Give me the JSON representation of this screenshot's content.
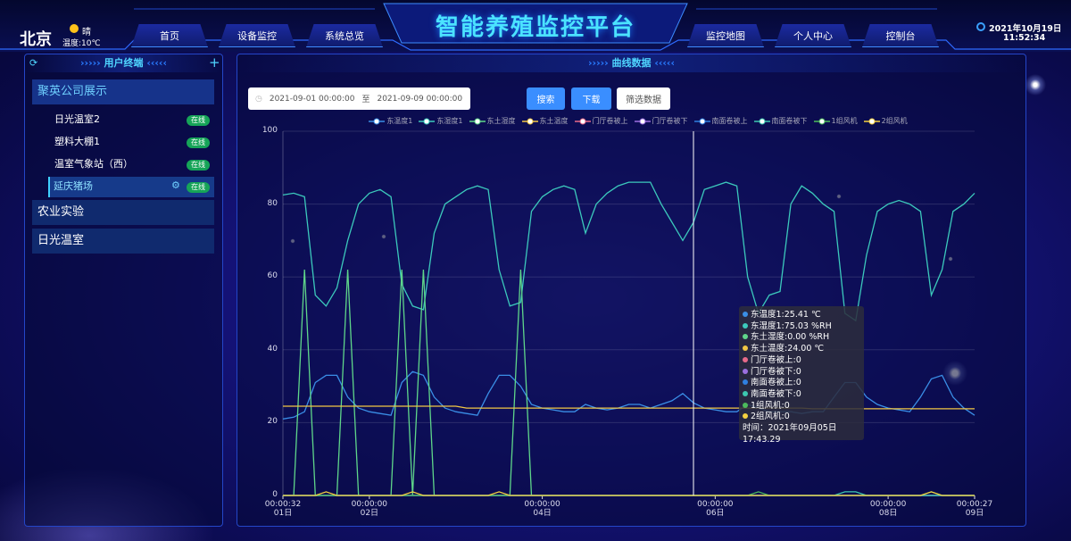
{
  "header": {
    "city": "北京",
    "weather": "晴",
    "temperature": "温度:10℃",
    "nav_left": [
      "首页",
      "设备监控",
      "系统总览"
    ],
    "title": "智能养殖监控平台",
    "nav_right": [
      "监控地图",
      "个人中心",
      "控制台"
    ],
    "date": "2021年10月19日",
    "time": "11:52:34"
  },
  "sidebar": {
    "title": "用户终端",
    "groups": [
      {
        "name": "聚英公司展示",
        "devices": [
          {
            "name": "日光温室2",
            "status": "在线"
          },
          {
            "name": "塑料大棚1",
            "status": "在线"
          },
          {
            "name": "温室气象站（西）",
            "status": "在线"
          },
          {
            "name": "延庆猪场",
            "status": "在线"
          }
        ]
      },
      {
        "name": "农业实验"
      },
      {
        "name": "日光温室"
      }
    ]
  },
  "panel": {
    "title": "曲线数据",
    "start": "2021-09-01 00:00:00",
    "separator": "至",
    "end": "2021-09-09 00:00:00",
    "buttons": [
      "搜索",
      "下载",
      "筛选数据"
    ]
  },
  "tooltip": {
    "lines": [
      "东温度1:25.41 ℃",
      "东湿度1:75.03 %RH",
      "东土湿度:0.00 %RH",
      "东土温度:24.00 ℃",
      "门厅卷被上:0",
      "门厅卷被下:0",
      "南面卷被上:0",
      "南面卷被下:0",
      "1组风机:0",
      "2组风机:0"
    ],
    "time": "时间：2021年09月05日 17:43.29"
  },
  "chart_data": {
    "type": "line",
    "x": [
      1.0004,
      1.125,
      1.25,
      1.375,
      1.5,
      1.625,
      1.75,
      1.875,
      2,
      2.125,
      2.25,
      2.375,
      2.5,
      2.625,
      2.75,
      2.875,
      3,
      3.125,
      3.25,
      3.375,
      3.5,
      3.625,
      3.75,
      3.875,
      4,
      4.125,
      4.25,
      4.375,
      4.5,
      4.625,
      4.75,
      4.875,
      5,
      5.125,
      5.25,
      5.375,
      5.5,
      5.625,
      5.75,
      5.875,
      6,
      6.125,
      6.25,
      6.375,
      6.5,
      6.625,
      6.75,
      6.875,
      7,
      7.125,
      7.25,
      7.375,
      7.5,
      7.625,
      7.75,
      7.875,
      8,
      8.125,
      8.25,
      8.375,
      8.5,
      8.625,
      8.75,
      8.875,
      9.0003
    ],
    "xlim": [
      1.0004,
      9.0003
    ],
    "xticks": [
      {
        "value": 1.0004,
        "label": "00:00:32\n01日"
      },
      {
        "value": 2,
        "label": "00:00:00\n02日"
      },
      {
        "value": 4,
        "label": "00:00:00\n04日"
      },
      {
        "value": 6,
        "label": "00:00:00\n06日"
      },
      {
        "value": 8,
        "label": "00:00:00\n08日"
      },
      {
        "value": 9.0003,
        "label": "00:00:27\n09日"
      }
    ],
    "ylim": [
      0,
      100
    ],
    "yticks": [
      0,
      20,
      40,
      60,
      80,
      100
    ],
    "grid": true,
    "series": [
      {
        "name": "东温度1",
        "color": "#3a8ee6",
        "values": [
          21,
          21.5,
          23,
          31,
          33,
          33,
          27,
          24,
          23,
          22.5,
          22,
          31,
          34,
          33,
          27,
          24,
          23,
          22.5,
          22,
          28,
          33,
          33,
          30,
          25,
          24,
          23.5,
          23,
          23,
          25,
          24,
          23.5,
          24,
          25,
          25,
          24,
          25,
          26,
          28,
          25.41,
          24,
          23.5,
          23,
          23,
          25,
          24,
          23,
          23,
          23,
          22.5,
          23,
          23,
          27,
          31,
          31,
          27,
          25,
          24,
          23.5,
          23,
          27,
          32,
          33,
          27,
          24,
          22
        ]
      },
      {
        "name": "东湿度1",
        "color": "#3cc9bc",
        "values": [
          82.5,
          83,
          82,
          55,
          52,
          57,
          70,
          80,
          83,
          84,
          82,
          58,
          52,
          51,
          72,
          80,
          82,
          84,
          85,
          84,
          62,
          52,
          53,
          78,
          82,
          84,
          85,
          84,
          72,
          80,
          83,
          85,
          86,
          86,
          86,
          80,
          75,
          70,
          75.03,
          84,
          85,
          86,
          85,
          60,
          50,
          55,
          56,
          80,
          85,
          83,
          80,
          78,
          50,
          48,
          66,
          78,
          80,
          81,
          80,
          78,
          55,
          62,
          78,
          80,
          83
        ]
      },
      {
        "name": "东土湿度",
        "color": "#5fd68a",
        "values": [
          0,
          0,
          62,
          0,
          0,
          0,
          62,
          0,
          0,
          0,
          0,
          62,
          0,
          62,
          0,
          0,
          0,
          0,
          0,
          0,
          0,
          0,
          62,
          0,
          0,
          0,
          0,
          0,
          0,
          0,
          0,
          0,
          0,
          0,
          0,
          0,
          0,
          0,
          0,
          0,
          0,
          0,
          0,
          0,
          0,
          0,
          0,
          0,
          0,
          0,
          0,
          0,
          0,
          0,
          0,
          0,
          0,
          0,
          0,
          0,
          0,
          0,
          0,
          0,
          0
        ]
      },
      {
        "name": "东土温度",
        "color": "#f2c744",
        "values": [
          24.5,
          24.5,
          24.5,
          24.5,
          24.5,
          24.5,
          24.5,
          24.5,
          24.5,
          24.5,
          24.5,
          24.5,
          24.5,
          24.5,
          24.5,
          24.5,
          24.5,
          24,
          24,
          24,
          24,
          24,
          24,
          24,
          24,
          24,
          24,
          24,
          24,
          24,
          24,
          24,
          24,
          24,
          24,
          24,
          24,
          24,
          24,
          24,
          24,
          24,
          24,
          24,
          24,
          24,
          24,
          24,
          24,
          23.8,
          23.8,
          23.8,
          23.8,
          23.8,
          23.8,
          23.8,
          23.8,
          23.8,
          23.8,
          23.8,
          23.8,
          23.8,
          23.8,
          23.8,
          23.8
        ]
      },
      {
        "name": "门厅卷被上",
        "color": "#e86a8a",
        "values": [
          0,
          0,
          0,
          0,
          0,
          0,
          0,
          0,
          0,
          0,
          0,
          0,
          0,
          0,
          0,
          0,
          0,
          0,
          0,
          0,
          0,
          0,
          0,
          0,
          0,
          0,
          0,
          0,
          0,
          0,
          0,
          0,
          0,
          0,
          0,
          0,
          0,
          0,
          0,
          0,
          0,
          0,
          0,
          0,
          0,
          0,
          0,
          0,
          0,
          0,
          0,
          0,
          0,
          0,
          0,
          0,
          0,
          0,
          0,
          0,
          0,
          0,
          0,
          0,
          0
        ]
      },
      {
        "name": "门厅卷被下",
        "color": "#9b6fe0",
        "values": [
          0,
          0,
          0,
          0,
          0,
          0,
          0,
          0,
          0,
          0,
          0,
          0,
          0,
          0,
          0,
          0,
          0,
          0,
          0,
          0,
          0,
          0,
          0,
          0,
          0,
          0,
          0,
          0,
          0,
          0,
          0,
          0,
          0,
          0,
          0,
          0,
          0,
          0,
          0,
          0,
          0,
          0,
          0,
          0,
          0,
          0,
          0,
          0,
          0,
          0,
          0,
          0,
          0,
          0,
          0,
          0,
          0,
          0,
          0,
          0,
          0,
          0,
          0,
          0,
          0
        ]
      },
      {
        "name": "南面卷被上",
        "color": "#2f7fe0",
        "values": [
          0,
          0,
          0,
          0,
          0,
          0,
          0,
          0,
          0,
          0,
          0,
          0,
          0,
          0,
          0,
          0,
          0,
          0,
          0,
          0,
          0,
          0,
          0,
          0,
          0,
          0,
          0,
          0,
          0,
          0,
          0,
          0,
          0,
          0,
          0,
          0,
          0,
          0,
          0,
          0,
          0,
          0,
          0,
          0,
          0,
          0,
          0,
          0,
          0,
          0,
          0,
          0,
          0,
          0,
          0,
          0,
          0,
          0,
          0,
          0,
          0,
          0,
          0,
          0,
          0
        ]
      },
      {
        "name": "南面卷被下",
        "color": "#3cc8b0",
        "values": [
          0,
          0,
          0,
          0,
          0,
          0,
          0,
          0,
          0,
          0,
          0,
          0,
          0,
          0,
          0,
          0,
          0,
          0,
          0,
          0,
          0,
          0,
          0,
          0,
          0,
          0,
          0,
          0,
          0,
          0,
          0,
          0,
          0,
          0,
          0,
          0,
          0,
          0,
          0,
          0,
          0,
          0,
          0,
          0,
          0,
          0,
          0,
          0,
          0,
          0,
          0,
          0,
          1,
          1,
          0,
          0,
          0,
          0,
          0,
          0,
          0,
          0,
          0,
          0,
          0
        ]
      },
      {
        "name": "1组风机",
        "color": "#4cbb5c",
        "values": [
          0,
          0,
          0,
          0,
          0,
          0,
          0,
          0,
          0,
          0,
          0,
          0,
          0,
          0,
          0,
          0,
          0,
          0,
          0,
          0,
          0,
          0,
          0,
          0,
          0,
          0,
          0,
          0,
          0,
          0,
          0,
          0,
          0,
          0,
          0,
          0,
          0,
          0,
          0,
          0,
          0,
          0,
          0,
          0,
          1,
          0,
          0,
          0,
          0,
          0,
          0,
          0,
          0,
          0,
          0,
          0,
          0,
          0,
          0,
          0,
          1,
          0,
          0,
          0,
          0
        ]
      },
      {
        "name": "2组风机",
        "color": "#f5d040",
        "values": [
          0,
          0,
          0,
          0,
          1,
          0,
          0,
          0,
          0,
          0,
          0,
          0,
          1,
          0,
          0,
          0,
          0,
          0,
          0,
          0,
          1,
          0,
          0,
          0,
          0,
          0,
          0,
          0,
          0,
          0,
          0,
          0,
          0,
          0,
          0,
          0,
          0,
          0,
          0,
          0,
          0,
          0,
          0,
          0,
          0,
          0,
          0,
          0,
          0,
          0,
          0,
          0,
          0,
          0,
          0,
          0,
          0,
          0,
          0,
          0,
          1,
          0,
          0,
          0,
          0
        ]
      }
    ]
  }
}
